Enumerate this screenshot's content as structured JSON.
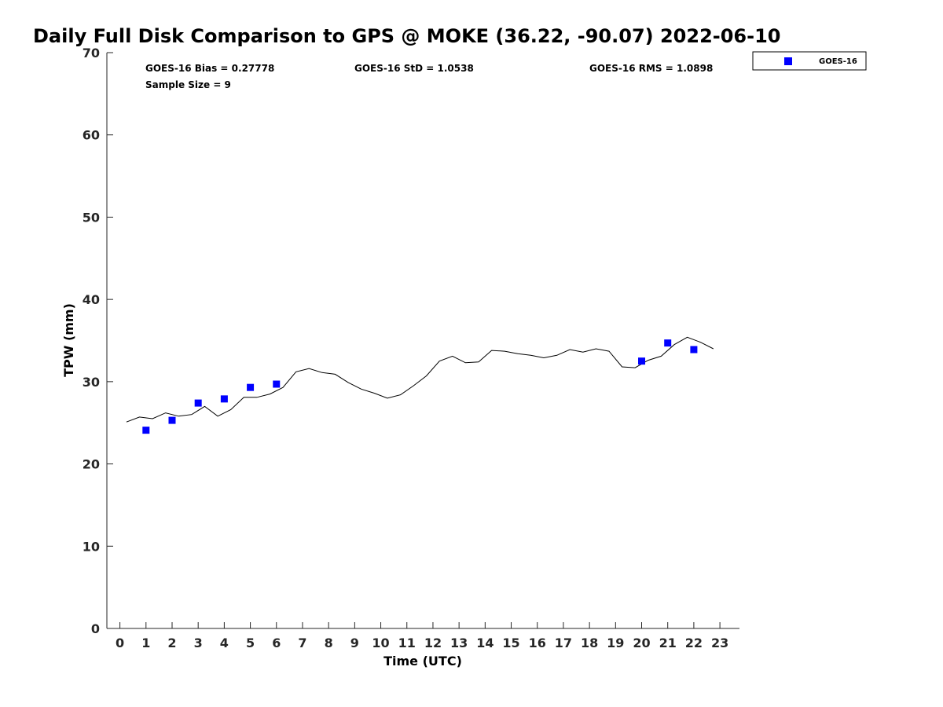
{
  "chart_data": {
    "type": "scatter",
    "title": "Daily Full Disk Comparison to GPS @ MOKE (36.22, -90.07) 2022-06-10",
    "xlabel": "Time (UTC)",
    "ylabel": "TPW (mm)",
    "xlim": [
      -0.5,
      23.75
    ],
    "ylim": [
      0,
      70
    ],
    "x_ticks": [
      0,
      1,
      2,
      3,
      4,
      5,
      6,
      7,
      8,
      9,
      10,
      11,
      12,
      13,
      14,
      15,
      16,
      17,
      18,
      19,
      20,
      21,
      22,
      23
    ],
    "y_ticks": [
      0,
      10,
      20,
      30,
      40,
      50,
      60,
      70
    ],
    "grid": false,
    "legend_position": "top-right",
    "stats": {
      "bias": "GOES-16 Bias = 0.27778",
      "std": "GOES-16 StD = 1.0538",
      "rms": "GOES-16 RMS = 1.0898",
      "sample_size": "Sample Size = 9"
    },
    "series": [
      {
        "name": "GOES-16",
        "kind": "scatter",
        "color": "#0000ff",
        "marker": "square",
        "x": [
          1,
          2,
          3,
          4,
          5,
          6,
          20,
          21,
          22
        ],
        "y": [
          24.1,
          25.3,
          27.4,
          27.9,
          29.3,
          29.7,
          32.5,
          34.7,
          33.9
        ]
      },
      {
        "kind": "line",
        "color": "#000000",
        "x": [
          0.25,
          0.75,
          1.25,
          1.75,
          2.25,
          2.75,
          3.25,
          3.75,
          4.25,
          4.75,
          5.25,
          5.75,
          6.25,
          6.75,
          7.25,
          7.75,
          8.25,
          8.75,
          9.25,
          9.75,
          10.25,
          10.75,
          11.25,
          11.75,
          12.25,
          12.75,
          13.25,
          13.75,
          14.25,
          14.75,
          15.25,
          15.75,
          16.25,
          16.75,
          17.25,
          17.75,
          18.25,
          18.75,
          19.25,
          19.75,
          20.25,
          20.75,
          21.25,
          21.75,
          22.25,
          22.75
        ],
        "y": [
          25.1,
          25.7,
          25.5,
          26.2,
          25.8,
          26.0,
          27.0,
          25.8,
          26.6,
          28.1,
          28.1,
          28.5,
          29.3,
          31.2,
          31.6,
          31.1,
          30.9,
          29.9,
          29.1,
          28.6,
          28.0,
          28.4,
          29.5,
          30.7,
          32.5,
          33.1,
          32.3,
          32.4,
          33.8,
          33.7,
          33.4,
          33.2,
          32.9,
          33.2,
          33.9,
          33.6,
          34.0,
          33.7,
          31.8,
          31.7,
          32.6,
          33.1,
          34.5,
          35.4,
          34.8,
          34.0
        ]
      }
    ]
  }
}
